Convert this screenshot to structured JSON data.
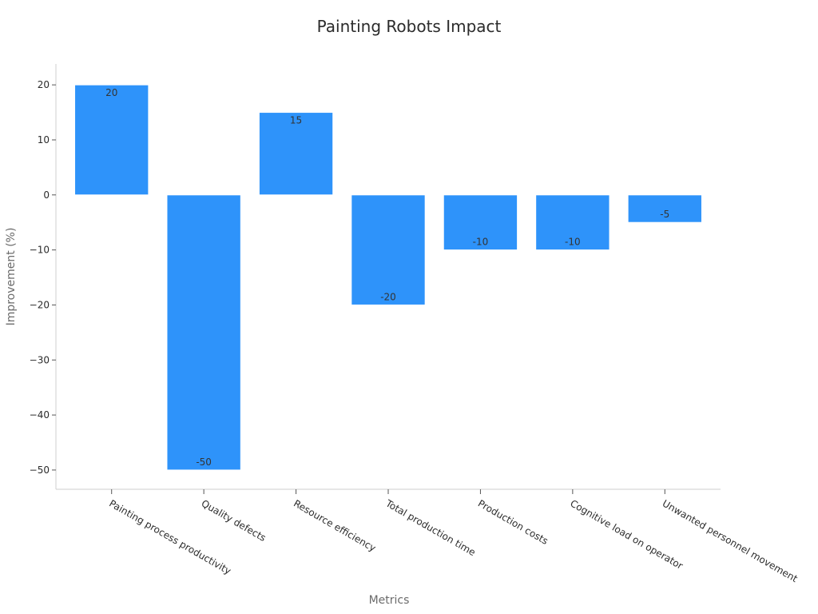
{
  "chart_data": {
    "type": "bar",
    "title": "Painting Robots Impact",
    "xlabel": "Metrics",
    "ylabel": "Improvement (%)",
    "categories": [
      "Painting process productivity",
      "Quality defects",
      "Resource efficiency",
      "Total production time",
      "Production costs",
      "Cognitive load on operator",
      "Unwanted personnel movement"
    ],
    "values": [
      20,
      -50,
      15,
      -20,
      -10,
      -10,
      -5
    ],
    "data_labels": [
      "20",
      "-50",
      "15",
      "-20",
      "-10",
      "-10",
      "-5"
    ],
    "ylim": [
      -53.5,
      23.8
    ],
    "yticks": [
      20,
      10,
      0,
      -10,
      -20,
      -30,
      -40,
      -50
    ],
    "ytick_labels": [
      "20",
      "10",
      "0",
      "−10",
      "−20",
      "−30",
      "−40",
      "−50"
    ],
    "grid": false,
    "legend": false,
    "colors": {
      "bar": "#2e93fa",
      "bar_edge": "#ffffff"
    }
  }
}
